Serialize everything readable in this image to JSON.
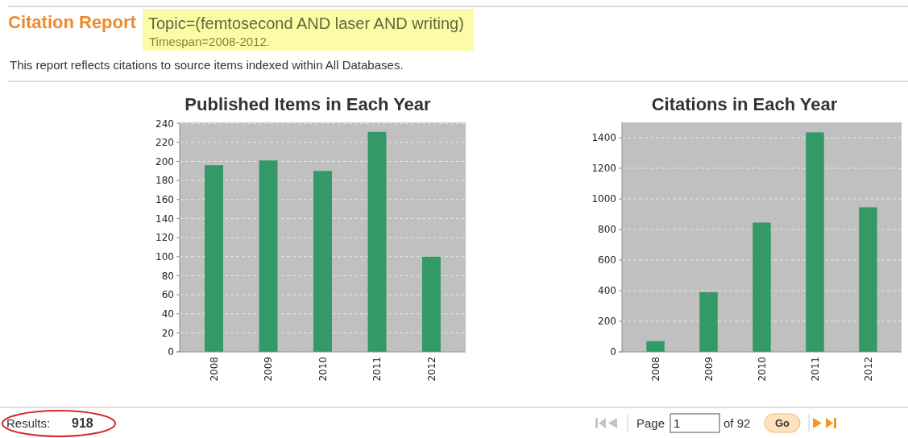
{
  "chart_data": [
    {
      "type": "other",
      "title": "Citation Report",
      "subtitle": "Topic=(femtosecond AND laser AND writing)",
      "annotations": [
        "Timespan=2008-2012.",
        "This report reflects citations to source items indexed within All Databases."
      ]
    },
    {
      "type": "bar",
      "title": "Published Items in Each Year",
      "categories": [
        "2008",
        "2009",
        "2010",
        "2011",
        "2012"
      ],
      "values": [
        196,
        201,
        190,
        231,
        100
      ],
      "color": "#339966",
      "ylim": [
        0,
        241
      ],
      "yticks": [
        0,
        20,
        40,
        60,
        80,
        100,
        120,
        140,
        160,
        180,
        200,
        220,
        240
      ],
      "grid": "y"
    },
    {
      "type": "bar",
      "title": "Citations in Each Year",
      "categories": [
        "2008",
        "2009",
        "2010",
        "2011",
        "2012"
      ],
      "values": [
        70,
        390,
        845,
        1435,
        945
      ],
      "color": "#339966",
      "ylim": [
        0,
        1500
      ],
      "yticks": [
        0,
        200,
        400,
        600,
        800,
        1000,
        1200,
        1400
      ],
      "grid": "y"
    },
    {
      "type": "other",
      "annotations": [
        "Results:",
        "918",
        "Page",
        "1",
        "of 92",
        "Go"
      ]
    }
  ]
}
